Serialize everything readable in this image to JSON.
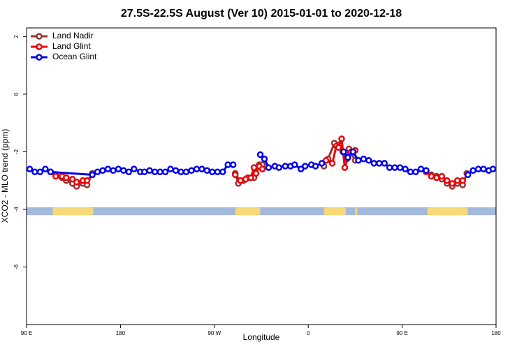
{
  "chart_data": {
    "type": "line",
    "title": "27.5S-22.5S August (Ver 10)   2015-01-01 to 2020-12-18",
    "x_label": "Longitude",
    "y_label": "XCO2 - MLO trend (ppm)",
    "xlim": [
      90,
      540
    ],
    "xticks": [
      {
        "value": 90,
        "label": "90 E"
      },
      180,
      {
        "value": 270,
        "label": "90 W"
      },
      {
        "value": 360,
        "label": "0"
      },
      {
        "value": 450,
        "label": "90 E"
      },
      {
        "value": 540,
        "label": "180"
      }
    ],
    "ylim": [
      -8,
      2.3
    ],
    "yticks": [
      2,
      0,
      -2,
      -4,
      -6
    ],
    "legend": "top-left",
    "surface_band": {
      "ylim": [
        -4.2,
        -3.93
      ],
      "ocean_color": "#a3b9dd",
      "land_color": "#f7d978",
      "land": [
        [
          115,
          154
        ],
        [
          290,
          314
        ],
        [
          375,
          396
        ],
        [
          405,
          407
        ],
        [
          474,
          513
        ]
      ]
    },
    "series": [
      {
        "name": "Land Nadir",
        "color": "#993333",
        "x": [
          113,
          118,
          124,
          128,
          134,
          138,
          144,
          148,
          153,
          null,
          290,
          293,
          298,
          302,
          308,
          310,
          313,
          316,
          null,
          375,
          379,
          385,
          390,
          393,
          397,
          399,
          405,
          null,
          473,
          478,
          483,
          488,
          493,
          498,
          503,
          508,
          512
        ],
        "values": [
          -2.7,
          -2.8,
          -2.9,
          -3.0,
          -3.1,
          -3.2,
          -3.1,
          -3.15,
          -2.75,
          null,
          -2.75,
          -3.1,
          -3.0,
          -2.9,
          -2.9,
          -2.55,
          -2.45,
          -2.45,
          null,
          -2.5,
          -2.25,
          -1.7,
          -1.75,
          -2.0,
          -2.25,
          -1.9,
          -2.3,
          null,
          -2.65,
          -2.8,
          -2.85,
          -2.95,
          -3.1,
          -3.2,
          -3.1,
          -3.15,
          -2.75
        ]
      },
      {
        "name": "Land Glint",
        "color": "#ee0000",
        "x": [
          113,
          118,
          124,
          128,
          134,
          138,
          144,
          148,
          153,
          null,
          290,
          295,
          300,
          305,
          308,
          310,
          313,
          316,
          null,
          377,
          383,
          387,
          389,
          392,
          395,
          398,
          401,
          405,
          null,
          473,
          478,
          483,
          488,
          493,
          498,
          503,
          508
        ],
        "values": [
          -2.7,
          -2.85,
          -2.85,
          -2.9,
          -2.95,
          -3.05,
          -3.0,
          -3.0,
          -2.8,
          null,
          -2.8,
          -3.0,
          -2.95,
          -2.9,
          -2.55,
          -2.75,
          -2.5,
          -2.6,
          null,
          -2.3,
          -2.4,
          -1.8,
          -1.85,
          -1.55,
          -2.55,
          -2.2,
          -2.0,
          -1.95,
          null,
          -2.7,
          -2.85,
          -2.9,
          -2.85,
          -3.0,
          -3.1,
          -3.0,
          -3.0
        ]
      },
      {
        "name": "Ocean Glint",
        "color": "#0000ee",
        "x": [
          93,
          98,
          103,
          108,
          113,
          153,
          158,
          163,
          168,
          173,
          178,
          183,
          188,
          193,
          199,
          203,
          208,
          213,
          218,
          223,
          228,
          233,
          238,
          243,
          248,
          253,
          258,
          263,
          268,
          273,
          278,
          283,
          288,
          null,
          314,
          318,
          322,
          328,
          332,
          338,
          343,
          347,
          353,
          357,
          363,
          367,
          373,
          null,
          394,
          398,
          403,
          408,
          413,
          418,
          423,
          428,
          433,
          438,
          443,
          448,
          453,
          458,
          463,
          468,
          473,
          null,
          513,
          518,
          523,
          528,
          533,
          537
        ],
        "values": [
          -2.6,
          -2.7,
          -2.7,
          -2.6,
          -2.7,
          -2.8,
          -2.7,
          -2.65,
          -2.6,
          -2.65,
          -2.6,
          -2.65,
          -2.7,
          -2.6,
          -2.7,
          -2.7,
          -2.65,
          -2.7,
          -2.7,
          -2.7,
          -2.6,
          -2.65,
          -2.7,
          -2.7,
          -2.65,
          -2.6,
          -2.6,
          -2.65,
          -2.7,
          -2.7,
          -2.7,
          -2.45,
          -2.45,
          null,
          -2.1,
          -2.25,
          -2.55,
          -2.5,
          -2.55,
          -2.5,
          -2.5,
          -2.45,
          -2.6,
          -2.5,
          -2.45,
          -2.5,
          -2.4,
          null,
          -2.0,
          -2.2,
          -2.0,
          -2.3,
          -2.25,
          -2.3,
          -2.4,
          -2.4,
          -2.4,
          -2.55,
          -2.55,
          -2.55,
          -2.6,
          -2.7,
          -2.7,
          -2.6,
          -2.65,
          null,
          -2.8,
          -2.65,
          -2.6,
          -2.6,
          -2.65,
          -2.6
        ]
      }
    ]
  }
}
